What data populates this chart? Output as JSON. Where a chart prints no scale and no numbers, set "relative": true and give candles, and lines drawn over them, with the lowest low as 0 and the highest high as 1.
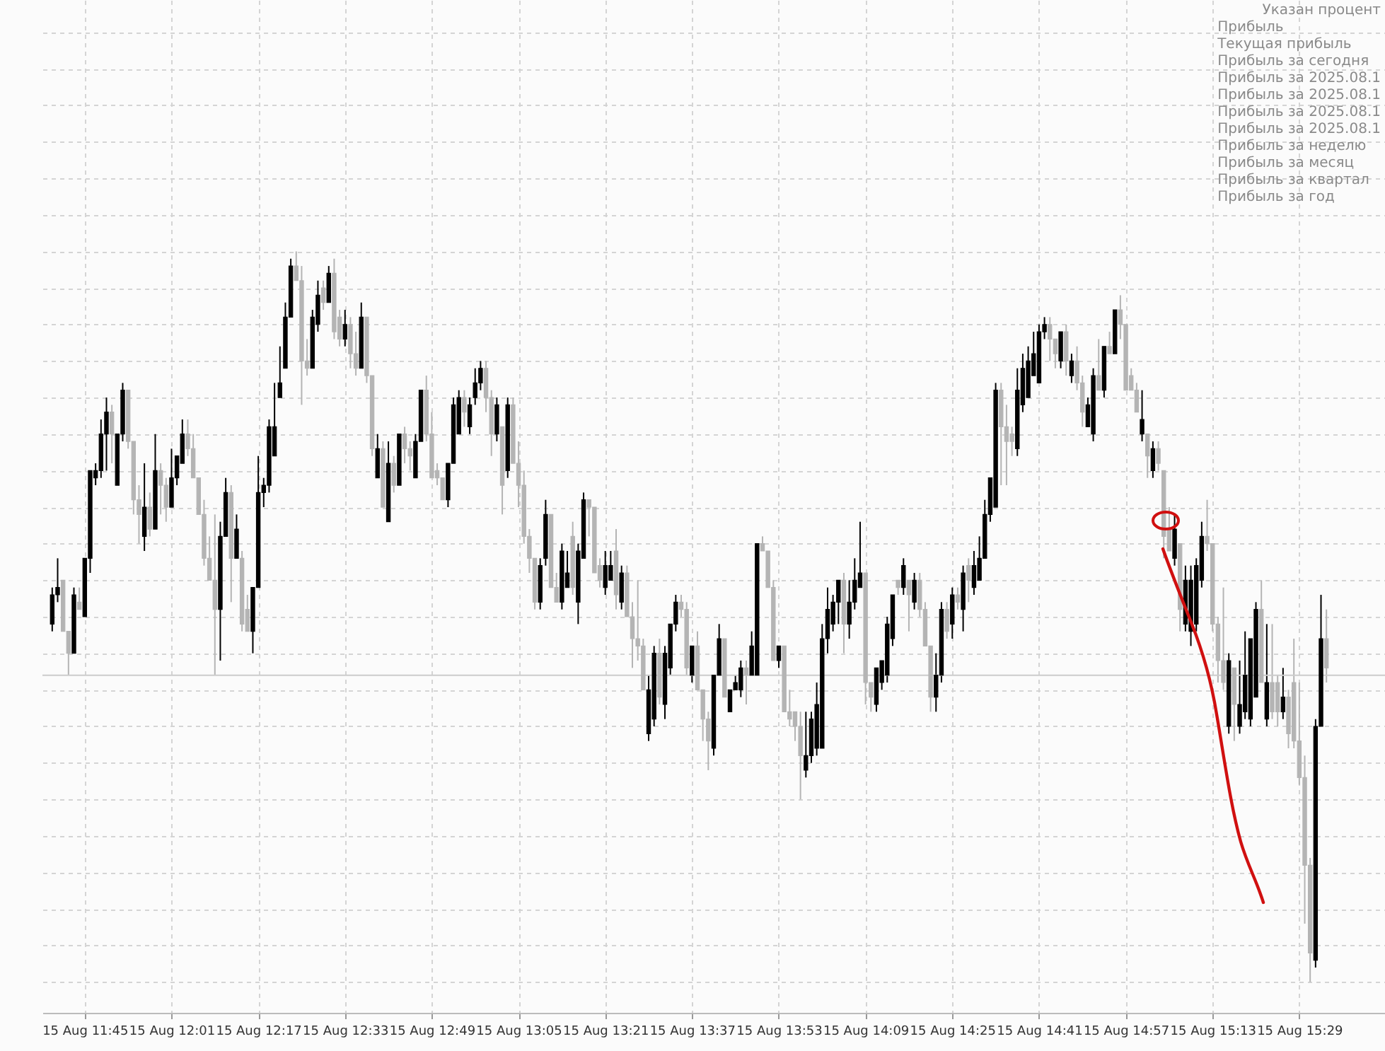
{
  "chart_data": {
    "type": "candlestick",
    "relative": true,
    "grid": true,
    "annotations": [
      "Указан процент",
      "Прибыль",
      "Текущая прибыль",
      "Прибыль за сегодня",
      "Прибыль за 2025.08.1",
      "Прибыль за 2025.08.1",
      "Прибыль за 2025.08.1",
      "Прибыль за 2025.08.1",
      "Прибыль за неделю",
      "Прибыль за месяц",
      "Прибыль за квартал",
      "Прибыль за год"
    ],
    "ref_lines": [
      {
        "axis": "y",
        "value": 0.42,
        "color": "#cccccc"
      }
    ],
    "categories": [
      null,
      null,
      null,
      null,
      null,
      null,
      "15 Aug 11:45",
      null,
      null,
      null,
      null,
      null,
      null,
      null,
      null,
      null,
      null,
      null,
      null,
      null,
      null,
      null,
      "15 Aug 12:01",
      null,
      null,
      null,
      null,
      null,
      null,
      null,
      null,
      null,
      null,
      null,
      null,
      null,
      null,
      null,
      "15 Aug 12:17",
      null,
      null,
      null,
      null,
      null,
      null,
      null,
      null,
      null,
      null,
      null,
      null,
      null,
      null,
      null,
      "15 Aug 12:33",
      null,
      null,
      null,
      null,
      null,
      null,
      null,
      null,
      null,
      null,
      null,
      null,
      null,
      null,
      null,
      "15 Aug 12:49",
      null,
      null,
      null,
      null,
      null,
      null,
      null,
      null,
      null,
      null,
      null,
      null,
      null,
      null,
      null,
      "15 Aug 13:05",
      null,
      null,
      null,
      null,
      null,
      null,
      null,
      null,
      null,
      null,
      null,
      null,
      null,
      null,
      null,
      "15 Aug 13:21",
      null,
      null,
      null,
      null,
      null,
      null,
      null,
      null,
      null,
      null,
      null,
      null,
      null,
      null,
      null,
      "15 Aug 13:37",
      null,
      null,
      null,
      null,
      null,
      null,
      null,
      null,
      null,
      null,
      null,
      null,
      null,
      null,
      null,
      "15 Aug 13:53",
      null,
      null,
      null,
      null,
      null,
      null,
      null,
      null,
      null,
      null,
      null,
      null,
      null,
      null,
      null,
      "15 Aug 14:09",
      null,
      null,
      null,
      null,
      null,
      null,
      null,
      null,
      null,
      null,
      null,
      null,
      null,
      null,
      null,
      "15 Aug 14:25",
      null,
      null,
      null,
      null,
      null,
      null,
      null,
      null,
      null,
      null,
      null,
      null,
      null,
      null,
      null,
      "15 Aug 14:41",
      null,
      null,
      null,
      null,
      null,
      null,
      null,
      null,
      null,
      null,
      null,
      null,
      null,
      null,
      null,
      "15 Aug 14:57",
      null,
      null,
      null,
      null,
      null,
      null,
      null,
      null,
      null,
      null,
      null,
      null,
      null,
      null,
      null,
      "15 Aug 15:13",
      null,
      null,
      null,
      null,
      null,
      null,
      null,
      null,
      null,
      null,
      null,
      null,
      null,
      null,
      null,
      "15 Aug 15:29",
      null,
      null,
      null,
      null,
      null
    ],
    "ohlc": [
      [
        0.49,
        0.54,
        0.48,
        0.53
      ],
      [
        0.53,
        0.58,
        0.52,
        0.54
      ],
      [
        0.55,
        0.55,
        0.48,
        0.48
      ],
      [
        0.48,
        0.48,
        0.42,
        0.45
      ],
      [
        0.45,
        0.54,
        0.45,
        0.53
      ],
      [
        0.52,
        0.54,
        0.51,
        0.51
      ],
      [
        0.5,
        0.58,
        0.5,
        0.58
      ],
      [
        0.58,
        0.7,
        0.56,
        0.7
      ],
      [
        0.69,
        0.71,
        0.68,
        0.7
      ],
      [
        0.7,
        0.77,
        0.69,
        0.75
      ],
      [
        0.75,
        0.8,
        0.7,
        0.78
      ],
      [
        0.78,
        0.79,
        0.71,
        0.75
      ],
      [
        0.68,
        0.75,
        0.68,
        0.75
      ],
      [
        0.75,
        0.82,
        0.74,
        0.81
      ],
      [
        0.81,
        0.81,
        0.73,
        0.74
      ],
      [
        0.74,
        0.74,
        0.64,
        0.66
      ],
      [
        0.66,
        0.68,
        0.6,
        0.64
      ],
      [
        0.61,
        0.71,
        0.59,
        0.65
      ],
      [
        0.65,
        0.67,
        0.61,
        0.62
      ],
      [
        0.62,
        0.75,
        0.62,
        0.7
      ],
      [
        0.7,
        0.71,
        0.64,
        0.68
      ],
      [
        0.68,
        0.69,
        0.63,
        0.65
      ],
      [
        0.65,
        0.73,
        0.65,
        0.69
      ],
      [
        0.69,
        0.72,
        0.68,
        0.72
      ],
      [
        0.71,
        0.77,
        0.71,
        0.75
      ],
      [
        0.75,
        0.77,
        0.72,
        0.73
      ],
      [
        0.73,
        0.75,
        0.69,
        0.69
      ],
      [
        0.69,
        0.69,
        0.64,
        0.64
      ],
      [
        0.64,
        0.66,
        0.57,
        0.58
      ],
      [
        0.58,
        0.61,
        0.55,
        0.55
      ],
      [
        0.55,
        0.64,
        0.42,
        0.51
      ],
      [
        0.51,
        0.63,
        0.44,
        0.61
      ],
      [
        0.61,
        0.69,
        0.61,
        0.67
      ],
      [
        0.67,
        0.68,
        0.52,
        0.58
      ],
      [
        0.58,
        0.64,
        0.58,
        0.62
      ],
      [
        0.58,
        0.59,
        0.48,
        0.49
      ],
      [
        0.51,
        0.53,
        0.48,
        0.48
      ],
      [
        0.48,
        0.54,
        0.45,
        0.54
      ],
      [
        0.54,
        0.72,
        0.54,
        0.67
      ],
      [
        0.67,
        0.69,
        0.65,
        0.68
      ],
      [
        0.68,
        0.77,
        0.67,
        0.76
      ],
      [
        0.72,
        0.82,
        0.72,
        0.76
      ],
      [
        0.8,
        0.87,
        0.8,
        0.82
      ],
      [
        0.84,
        0.93,
        0.84,
        0.91
      ],
      [
        0.91,
        0.99,
        0.91,
        0.98
      ],
      [
        0.98,
        1,
        0.96,
        0.96
      ],
      [
        0.96,
        0.98,
        0.79,
        0.85
      ],
      [
        0.85,
        0.88,
        0.83,
        0.84
      ],
      [
        0.84,
        0.92,
        0.84,
        0.91
      ],
      [
        0.9,
        0.96,
        0.89,
        0.94
      ],
      [
        0.95,
        0.96,
        0.92,
        0.93
      ],
      [
        0.93,
        0.98,
        0.93,
        0.97
      ],
      [
        0.97,
        0.99,
        0.88,
        0.89
      ],
      [
        0.91,
        0.92,
        0.87,
        0.88
      ],
      [
        0.88,
        0.92,
        0.87,
        0.9
      ],
      [
        0.9,
        0.91,
        0.84,
        0.86
      ],
      [
        0.86,
        0.89,
        0.83,
        0.84
      ],
      [
        0.84,
        0.93,
        0.84,
        0.91
      ],
      [
        0.91,
        0.91,
        0.82,
        0.83
      ],
      [
        0.83,
        0.83,
        0.72,
        0.73
      ],
      [
        0.69,
        0.75,
        0.69,
        0.73
      ],
      [
        0.73,
        0.74,
        0.65,
        0.65
      ],
      [
        0.63,
        0.74,
        0.63,
        0.71
      ],
      [
        0.71,
        0.72,
        0.67,
        0.68
      ],
      [
        0.68,
        0.75,
        0.68,
        0.75
      ],
      [
        0.75,
        0.76,
        0.71,
        0.73
      ],
      [
        0.73,
        0.74,
        0.7,
        0.72
      ],
      [
        0.69,
        0.75,
        0.69,
        0.74
      ],
      [
        0.74,
        0.81,
        0.74,
        0.81
      ],
      [
        0.81,
        0.83,
        0.74,
        0.75
      ],
      [
        0.75,
        0.78,
        0.69,
        0.69
      ],
      [
        0.7,
        0.71,
        0.68,
        0.69
      ],
      [
        0.69,
        0.69,
        0.66,
        0.66
      ],
      [
        0.66,
        0.71,
        0.65,
        0.71
      ],
      [
        0.71,
        0.8,
        0.71,
        0.79
      ],
      [
        0.75,
        0.81,
        0.75,
        0.8
      ],
      [
        0.8,
        0.81,
        0.76,
        0.78
      ],
      [
        0.76,
        0.8,
        0.75,
        0.79
      ],
      [
        0.8,
        0.84,
        0.79,
        0.82
      ],
      [
        0.82,
        0.85,
        0.81,
        0.84
      ],
      [
        0.84,
        0.85,
        0.78,
        0.8
      ],
      [
        0.8,
        0.81,
        0.72,
        0.75
      ],
      [
        0.75,
        0.8,
        0.74,
        0.79
      ],
      [
        0.76,
        0.76,
        0.64,
        0.68
      ],
      [
        0.7,
        0.8,
        0.69,
        0.79
      ],
      [
        0.79,
        0.8,
        0.71,
        0.71
      ],
      [
        0.71,
        0.74,
        0.65,
        0.68
      ],
      [
        0.68,
        0.7,
        0.6,
        0.61
      ],
      [
        0.61,
        0.62,
        0.56,
        0.58
      ],
      [
        0.58,
        0.58,
        0.51,
        0.52
      ],
      [
        0.52,
        0.58,
        0.51,
        0.57
      ],
      [
        0.58,
        0.66,
        0.57,
        0.64
      ],
      [
        0.64,
        0.64,
        0.54,
        0.54
      ],
      [
        0.54,
        0.56,
        0.52,
        0.52
      ],
      [
        0.52,
        0.6,
        0.51,
        0.59
      ],
      [
        0.54,
        0.59,
        0.54,
        0.56
      ],
      [
        0.61,
        0.63,
        0.53,
        0.54
      ],
      [
        0.52,
        0.6,
        0.49,
        0.59
      ],
      [
        0.58,
        0.67,
        0.58,
        0.66
      ],
      [
        0.66,
        0.66,
        0.61,
        0.65
      ],
      [
        0.65,
        0.65,
        0.56,
        0.56
      ],
      [
        0.57,
        0.58,
        0.54,
        0.55
      ],
      [
        0.54,
        0.59,
        0.53,
        0.57
      ],
      [
        0.55,
        0.59,
        0.55,
        0.57
      ],
      [
        0.59,
        0.62,
        0.51,
        0.53
      ],
      [
        0.52,
        0.57,
        0.51,
        0.56
      ],
      [
        0.56,
        0.57,
        0.5,
        0.5
      ],
      [
        0.5,
        0.52,
        0.43,
        0.47
      ],
      [
        0.47,
        0.55,
        0.44,
        0.46
      ],
      [
        0.46,
        0.47,
        0.4,
        0.4
      ],
      [
        0.34,
        0.42,
        0.33,
        0.4
      ],
      [
        0.36,
        0.46,
        0.35,
        0.45
      ],
      [
        0.45,
        0.47,
        0.38,
        0.39
      ],
      [
        0.38,
        0.46,
        0.36,
        0.45
      ],
      [
        0.43,
        0.49,
        0.42,
        0.49
      ],
      [
        0.49,
        0.53,
        0.48,
        0.52
      ],
      [
        0.52,
        0.53,
        0.5,
        0.51
      ],
      [
        0.51,
        0.52,
        0.42,
        0.43
      ],
      [
        0.42,
        0.46,
        0.41,
        0.46
      ],
      [
        0.46,
        0.48,
        0.4,
        0.4
      ],
      [
        0.4,
        0.4,
        0.33,
        0.36
      ],
      [
        0.36,
        0.37,
        0.29,
        0.33
      ],
      [
        0.32,
        0.42,
        0.31,
        0.42
      ],
      [
        0.42,
        0.49,
        0.42,
        0.47
      ],
      [
        0.47,
        0.47,
        0.39,
        0.39
      ],
      [
        0.37,
        0.4,
        0.37,
        0.4
      ],
      [
        0.4,
        0.42,
        0.4,
        0.41
      ],
      [
        0.4,
        0.44,
        0.39,
        0.43
      ],
      [
        0.43,
        0.44,
        0.38,
        0.42
      ],
      [
        0.42,
        0.48,
        0.42,
        0.46
      ],
      [
        0.42,
        0.6,
        0.42,
        0.6
      ],
      [
        0.6,
        0.61,
        0.59,
        0.59
      ],
      [
        0.59,
        0.59,
        0.54,
        0.54
      ],
      [
        0.54,
        0.55,
        0.44,
        0.44
      ],
      [
        0.44,
        0.46,
        0.43,
        0.46
      ],
      [
        0.46,
        0.46,
        0.37,
        0.37
      ],
      [
        0.37,
        0.4,
        0.35,
        0.36
      ],
      [
        0.37,
        0.37,
        0.33,
        0.35
      ],
      [
        0.35,
        0.37,
        0.25,
        0.31
      ],
      [
        0.29,
        0.37,
        0.28,
        0.31
      ],
      [
        0.31,
        0.37,
        0.3,
        0.36
      ],
      [
        0.32,
        0.41,
        0.31,
        0.38
      ],
      [
        0.32,
        0.49,
        0.32,
        0.47
      ],
      [
        0.47,
        0.54,
        0.45,
        0.51
      ],
      [
        0.49,
        0.53,
        0.48,
        0.52
      ],
      [
        0.52,
        0.55,
        0.49,
        0.55
      ],
      [
        0.55,
        0.56,
        0.45,
        0.49
      ],
      [
        0.49,
        0.55,
        0.47,
        0.52
      ],
      [
        0.52,
        0.58,
        0.51,
        0.55
      ],
      [
        0.54,
        0.63,
        0.54,
        0.56
      ],
      [
        0.56,
        0.56,
        0.38,
        0.41
      ],
      [
        0.41,
        0.41,
        0.37,
        0.39
      ],
      [
        0.38,
        0.43,
        0.37,
        0.43
      ],
      [
        0.41,
        0.44,
        0.4,
        0.44
      ],
      [
        0.42,
        0.5,
        0.41,
        0.49
      ],
      [
        0.47,
        0.53,
        0.46,
        0.53
      ],
      [
        0.55,
        0.55,
        0.53,
        0.54
      ],
      [
        0.54,
        0.58,
        0.53,
        0.57
      ],
      [
        0.55,
        0.55,
        0.48,
        0.53
      ],
      [
        0.52,
        0.56,
        0.51,
        0.55
      ],
      [
        0.55,
        0.56,
        0.5,
        0.51
      ],
      [
        0.51,
        0.52,
        0.46,
        0.46
      ],
      [
        0.46,
        0.46,
        0.37,
        0.39
      ],
      [
        0.39,
        0.45,
        0.37,
        0.42
      ],
      [
        0.42,
        0.52,
        0.41,
        0.51
      ],
      [
        0.51,
        0.52,
        0.47,
        0.48
      ],
      [
        0.49,
        0.54,
        0.47,
        0.53
      ],
      [
        0.53,
        0.54,
        0.51,
        0.52
      ],
      [
        0.51,
        0.57,
        0.48,
        0.56
      ],
      [
        0.57,
        0.58,
        0.52,
        0.55
      ],
      [
        0.54,
        0.59,
        0.53,
        0.57
      ],
      [
        0.55,
        0.61,
        0.55,
        0.58
      ],
      [
        0.58,
        0.66,
        0.58,
        0.64
      ],
      [
        0.64,
        0.69,
        0.63,
        0.69
      ],
      [
        0.65,
        0.82,
        0.65,
        0.81
      ],
      [
        0.81,
        0.82,
        0.68,
        0.76
      ],
      [
        0.76,
        0.79,
        0.68,
        0.74
      ],
      [
        0.75,
        0.76,
        0.72,
        0.74
      ],
      [
        0.73,
        0.84,
        0.72,
        0.81
      ],
      [
        0.79,
        0.86,
        0.78,
        0.84
      ],
      [
        0.8,
        0.87,
        0.8,
        0.85
      ],
      [
        0.83,
        0.89,
        0.83,
        0.86
      ],
      [
        0.82,
        0.9,
        0.82,
        0.89
      ],
      [
        0.89,
        0.91,
        0.88,
        0.9
      ],
      [
        0.9,
        0.91,
        0.85,
        0.88
      ],
      [
        0.88,
        0.88,
        0.84,
        0.86
      ],
      [
        0.85,
        0.89,
        0.84,
        0.89
      ],
      [
        0.89,
        0.9,
        0.83,
        0.85
      ],
      [
        0.83,
        0.86,
        0.82,
        0.85
      ],
      [
        0.85,
        0.87,
        0.81,
        0.82
      ],
      [
        0.82,
        0.83,
        0.76,
        0.78
      ],
      [
        0.76,
        0.8,
        0.76,
        0.79
      ],
      [
        0.75,
        0.84,
        0.74,
        0.83
      ],
      [
        0.83,
        0.88,
        0.81,
        0.81
      ],
      [
        0.81,
        0.87,
        0.8,
        0.87
      ],
      [
        0.87,
        0.89,
        0.86,
        0.86
      ],
      [
        0.86,
        0.92,
        0.86,
        0.92
      ],
      [
        0.92,
        0.94,
        0.88,
        0.9
      ],
      [
        0.9,
        0.9,
        0.81,
        0.81
      ],
      [
        0.83,
        0.84,
        0.81,
        0.81
      ],
      [
        0.81,
        0.82,
        0.78,
        0.78
      ],
      [
        0.75,
        0.81,
        0.74,
        0.77
      ],
      [
        0.75,
        0.75,
        0.69,
        0.72
      ],
      [
        0.7,
        0.74,
        0.69,
        0.73
      ],
      [
        0.73,
        0.74,
        0.7,
        0.71
      ],
      [
        0.7,
        0.7,
        0.58,
        0.61
      ],
      [
        0.62,
        0.65,
        0.59,
        0.59
      ],
      [
        0.58,
        0.64,
        0.57,
        0.62
      ],
      [
        0.6,
        0.6,
        0.48,
        0.51
      ],
      [
        0.49,
        0.57,
        0.48,
        0.55
      ],
      [
        0.48,
        0.57,
        0.46,
        0.55
      ],
      [
        0.49,
        0.58,
        0.48,
        0.57
      ],
      [
        0.55,
        0.63,
        0.54,
        0.61
      ],
      [
        0.61,
        0.66,
        0.59,
        0.6
      ],
      [
        0.6,
        0.6,
        0.48,
        0.49
      ],
      [
        0.49,
        0.5,
        0.41,
        0.44
      ],
      [
        0.44,
        0.54,
        0.4,
        0.41
      ],
      [
        0.35,
        0.45,
        0.34,
        0.44
      ],
      [
        0.43,
        0.43,
        0.33,
        0.38
      ],
      [
        0.35,
        0.44,
        0.34,
        0.38
      ],
      [
        0.37,
        0.48,
        0.36,
        0.42
      ],
      [
        0.36,
        0.47,
        0.35,
        0.47
      ],
      [
        0.39,
        0.52,
        0.39,
        0.51
      ],
      [
        0.51,
        0.55,
        0.41,
        0.41
      ],
      [
        0.36,
        0.49,
        0.35,
        0.41
      ],
      [
        0.41,
        0.49,
        0.36,
        0.37
      ],
      [
        0.41,
        0.42,
        0.35,
        0.37
      ],
      [
        0.37,
        0.43,
        0.36,
        0.39
      ],
      [
        0.39,
        0.4,
        0.32,
        0.34
      ],
      [
        0.41,
        0.47,
        0.32,
        0.33
      ],
      [
        0.33,
        0.41,
        0.27,
        0.28
      ],
      [
        0.28,
        0.31,
        0.08,
        0.16
      ],
      [
        0.16,
        0.17,
        0,
        0.04
      ],
      [
        0.03,
        0.36,
        0.02,
        0.35
      ],
      [
        0.35,
        0.53,
        0.35,
        0.47
      ],
      [
        0.47,
        0.51,
        0.41,
        0.43
      ]
    ]
  }
}
